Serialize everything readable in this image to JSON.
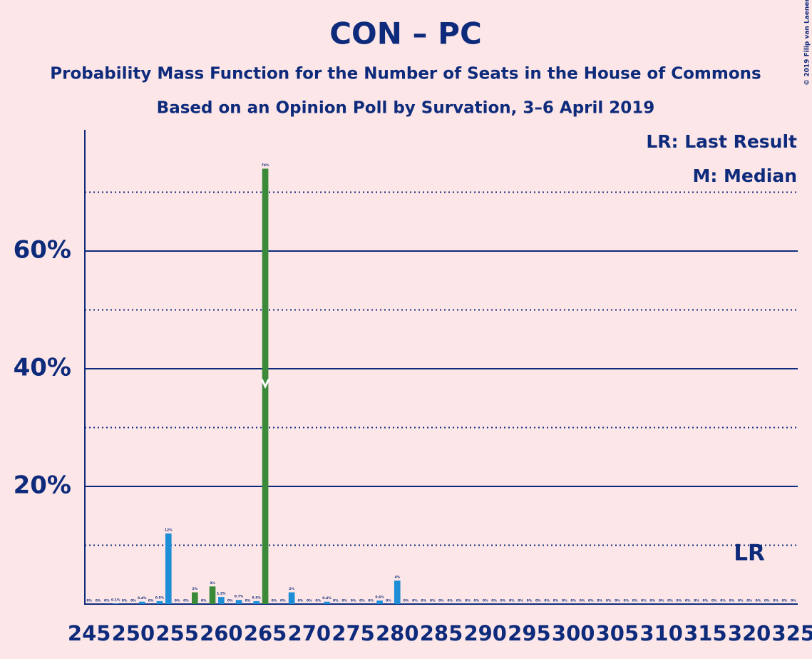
{
  "chart_data": {
    "type": "bar",
    "title": "CON – PC",
    "subtitle": "Probability Mass Function for the Number of Seats in the House of Commons",
    "subtitle2": "Based on an Opinion Poll by Survation, 3–6 April 2019",
    "copyright": "© 2019 Filip van Laenen",
    "legend": [
      "LR: Last Result",
      "M: Median"
    ],
    "x": [
      245,
      246,
      247,
      248,
      249,
      250,
      251,
      252,
      253,
      254,
      255,
      256,
      257,
      258,
      259,
      260,
      261,
      262,
      263,
      264,
      265,
      266,
      267,
      268,
      269,
      270,
      271,
      272,
      273,
      274,
      275,
      276,
      277,
      278,
      279,
      280,
      281,
      282,
      283,
      284,
      285,
      286,
      287,
      288,
      289,
      290,
      291,
      292,
      293,
      294,
      295,
      296,
      297,
      298,
      299,
      300,
      301,
      302,
      303,
      304,
      305,
      306,
      307,
      308,
      309,
      310,
      311,
      312,
      313,
      314,
      315,
      316,
      317,
      318,
      319,
      320,
      321,
      322,
      323,
      324,
      325
    ],
    "values": [
      0,
      0,
      0,
      0.1,
      0,
      0,
      0.4,
      0,
      0.5,
      12,
      0,
      0,
      2,
      0,
      3,
      1.2,
      0,
      0.7,
      0,
      0.5,
      74,
      0,
      0,
      2,
      0,
      0,
      0,
      0.4,
      0,
      0,
      0,
      0,
      0,
      0.6,
      0,
      4,
      0,
      0,
      0,
      0,
      0,
      0,
      0,
      0,
      0,
      0,
      0,
      0,
      0,
      0,
      0,
      0,
      0,
      0,
      0,
      0,
      0,
      0,
      0,
      0,
      0,
      0,
      0,
      0,
      0,
      0,
      0,
      0,
      0,
      0,
      0,
      0,
      0,
      0,
      0,
      0,
      0,
      0,
      0,
      0,
      0
    ],
    "value_labels": [
      "0%",
      "0%",
      "0%",
      "0.1%",
      "0%",
      "0%",
      "0.4%",
      "0%",
      "0.5%",
      "12%",
      "0%",
      "0%",
      "2%",
      "0%",
      "3%",
      "1.2%",
      "0%",
      "0.7%",
      "0%",
      "0.5%",
      "74%",
      "0%",
      "0%",
      "2%",
      "0%",
      "0%",
      "0%",
      "0.4%",
      "0%",
      "0%",
      "0%",
      "0%",
      "0%",
      "0.6%",
      "0%",
      "4%",
      "0%",
      "0%",
      "0%",
      "0%",
      "0%",
      "0%",
      "0%",
      "0%",
      "0%",
      "0%",
      "0%",
      "0%",
      "0%",
      "0%",
      "0%",
      "0%",
      "0%",
      "0%",
      "0%",
      "0%",
      "0%",
      "0%",
      "0%",
      "0%",
      "0%",
      "0%",
      "0%",
      "0%",
      "0%",
      "0%",
      "0%",
      "0%",
      "0%",
      "0%",
      "0%",
      "0%",
      "0%",
      "0%",
      "0%",
      "0%",
      "0%",
      "0%",
      "0%",
      "0%",
      "0%"
    ],
    "color": "#1e8ed6",
    "highlight_color": "#3a8a3a",
    "highlighted_x": [
      257,
      259,
      265
    ],
    "median_x": 265,
    "annotations": [
      {
        "label": "LR",
        "x": 320
      }
    ],
    "xlim": [
      244.5,
      325.5
    ],
    "xticks": [
      245,
      250,
      255,
      260,
      265,
      270,
      275,
      280,
      285,
      290,
      295,
      300,
      305,
      310,
      315,
      320,
      325
    ],
    "ylim": [
      0,
      80
    ],
    "yticks": [
      {
        "value": 20,
        "label": "20%"
      },
      {
        "value": 40,
        "label": "40%"
      },
      {
        "value": 60,
        "label": "60%"
      }
    ],
    "minor_yticks": [
      10,
      30,
      50,
      70
    ],
    "grid": true
  }
}
